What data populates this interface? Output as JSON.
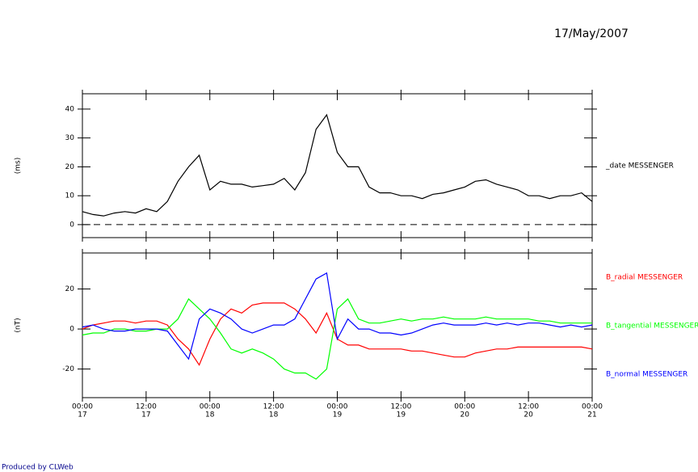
{
  "date": "17/May/2007",
  "footer": "Produced by CLWeb",
  "chart_data": [
    {
      "type": "line",
      "ylabel": "(ms)",
      "x": [
        0,
        2,
        4,
        6,
        8,
        10,
        12,
        14,
        16,
        18,
        20,
        22,
        24,
        26,
        28,
        30,
        32,
        34,
        36,
        38,
        40,
        42,
        44,
        46,
        48,
        50,
        52,
        54,
        56,
        58,
        60,
        62,
        64,
        66,
        68,
        70,
        72,
        74,
        76,
        78,
        80,
        82,
        84,
        86,
        88,
        90,
        92,
        94,
        96
      ],
      "xlim": [
        0,
        96
      ],
      "xticks": [
        0,
        12,
        24,
        36,
        48,
        60,
        72,
        84,
        96
      ],
      "ylim": [
        -4.5,
        45.3
      ],
      "yticks": [
        0,
        10,
        20,
        30,
        40
      ],
      "reference_line": 0,
      "series": [
        {
          "name": "_date MESSENGER",
          "color": "#000000",
          "values": [
            4.5,
            3.5,
            3,
            4,
            4.5,
            4,
            5.5,
            4.5,
            8,
            15,
            20,
            24,
            12,
            15,
            14,
            14,
            13,
            13.5,
            14,
            16,
            12,
            18,
            33,
            38,
            25,
            20,
            20,
            13,
            11,
            11,
            10,
            10,
            9,
            10.5,
            11,
            12,
            13,
            15,
            15.5,
            14,
            13,
            12,
            10,
            10,
            9,
            10,
            10,
            11,
            8
          ]
        }
      ]
    },
    {
      "type": "line",
      "ylabel": "(nT)",
      "x": [
        0,
        2,
        4,
        6,
        8,
        10,
        12,
        14,
        16,
        18,
        20,
        22,
        24,
        26,
        28,
        30,
        32,
        34,
        36,
        38,
        40,
        42,
        44,
        46,
        48,
        50,
        52,
        54,
        56,
        58,
        60,
        62,
        64,
        66,
        68,
        70,
        72,
        74,
        76,
        78,
        80,
        82,
        84,
        86,
        88,
        90,
        92,
        94,
        96
      ],
      "xlim": [
        0,
        96
      ],
      "xticks": [
        {
          "value": 0,
          "label": "00:00"
        },
        {
          "value": 12,
          "label": "12:00"
        },
        {
          "value": 24,
          "label": "00:00"
        },
        {
          "value": 36,
          "label": "12:00"
        },
        {
          "value": 48,
          "label": "00:00"
        },
        {
          "value": 60,
          "label": "12:00"
        },
        {
          "value": 72,
          "label": "00:00"
        },
        {
          "value": 84,
          "label": "12:00"
        },
        {
          "value": 96,
          "label": "00:00"
        }
      ],
      "xtick_days": [
        "17",
        "17",
        "18",
        "18",
        "19",
        "19",
        "20",
        "20",
        "21"
      ],
      "ylim": [
        -34.3,
        38
      ],
      "yticks": [
        -20,
        0,
        20
      ],
      "series": [
        {
          "name": "B_radial MESSENGER",
          "color": "#ff0000",
          "values": [
            0,
            2,
            3,
            4,
            4,
            3,
            4,
            4,
            2,
            -5,
            -10,
            -18,
            -5,
            5,
            10,
            8,
            12,
            13,
            13,
            13,
            10,
            5,
            -2,
            8,
            -5,
            -8,
            -8,
            -10,
            -10,
            -10,
            -10,
            -11,
            -11,
            -12,
            -13,
            -14,
            -14,
            -12,
            -11,
            -10,
            -10,
            -9,
            -9,
            -9,
            -9,
            -9,
            -9,
            -9,
            -10
          ]
        },
        {
          "name": "B_tangential MESSENGER",
          "color": "#00ff00",
          "values": [
            -3,
            -2,
            -2,
            0,
            0,
            -1,
            -1,
            0,
            0,
            5,
            15,
            10,
            5,
            -2,
            -10,
            -12,
            -10,
            -12,
            -15,
            -20,
            -22,
            -22,
            -25,
            -20,
            10,
            15,
            5,
            3,
            3,
            4,
            5,
            4,
            5,
            5,
            6,
            5,
            5,
            5,
            6,
            5,
            5,
            5,
            5,
            4,
            4,
            3,
            3,
            3,
            3
          ]
        },
        {
          "name": "B_normal MESSENGER",
          "color": "#0000ff",
          "values": [
            1,
            2,
            0,
            -1,
            -1,
            0,
            0,
            0,
            -1,
            -8,
            -15,
            5,
            10,
            8,
            5,
            0,
            -2,
            0,
            2,
            2,
            5,
            15,
            25,
            28,
            -5,
            5,
            0,
            0,
            -2,
            -2,
            -3,
            -2,
            0,
            2,
            3,
            2,
            2,
            2,
            3,
            2,
            3,
            2,
            3,
            3,
            2,
            1,
            2,
            1,
            2
          ]
        }
      ]
    }
  ]
}
